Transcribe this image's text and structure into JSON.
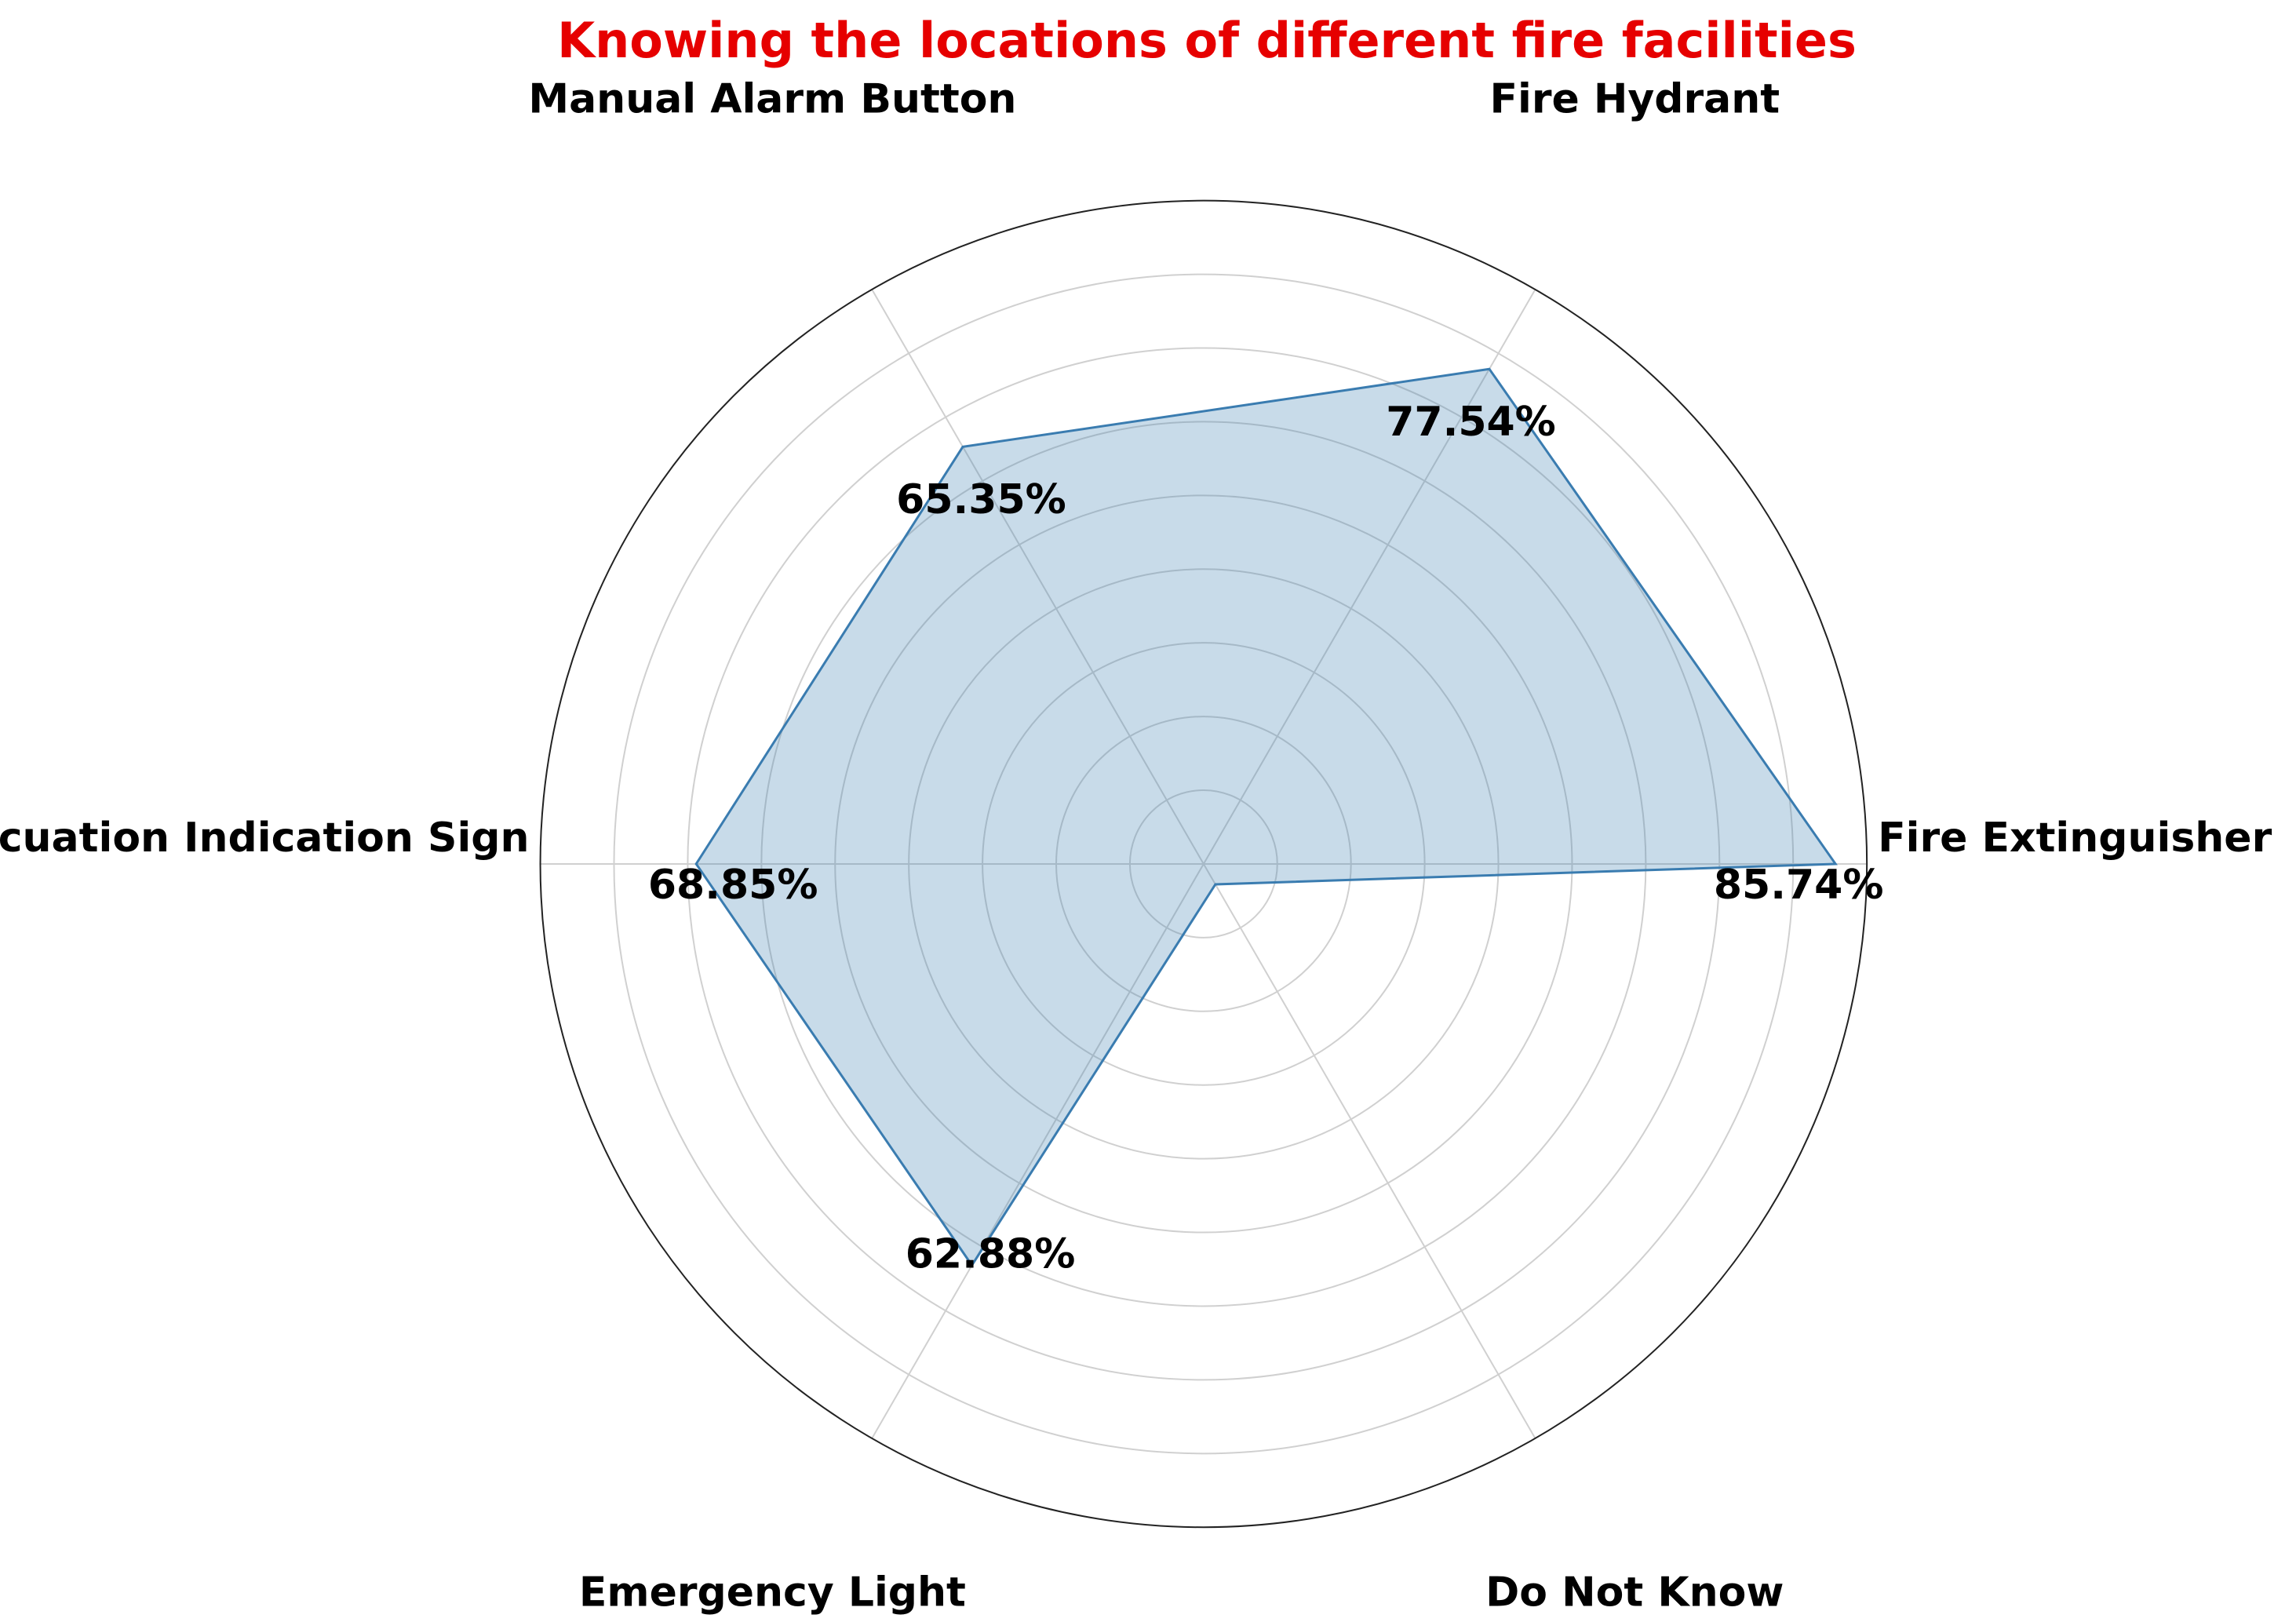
{
  "chart_data": {
    "type": "radar",
    "title": "Knowing the locations of different fire facilities",
    "categories": [
      "Fire Extinguisher",
      "Fire Hydrant",
      "Manual Alarm Button",
      "Evacuation Indication Sign",
      "Emergency Light",
      "Do Not Know"
    ],
    "values": [
      85.74,
      77.54,
      65.35,
      68.85,
      62.88,
      3.2
    ],
    "value_labels": [
      "85.74%",
      "77.54%",
      "65.35%",
      "68.85%",
      "62.88%",
      null
    ],
    "color": "#3a7cb0",
    "ylim": [
      0,
      90
    ],
    "yticks": [
      10,
      20,
      30,
      40,
      50,
      60,
      70,
      80
    ],
    "grid": true
  }
}
